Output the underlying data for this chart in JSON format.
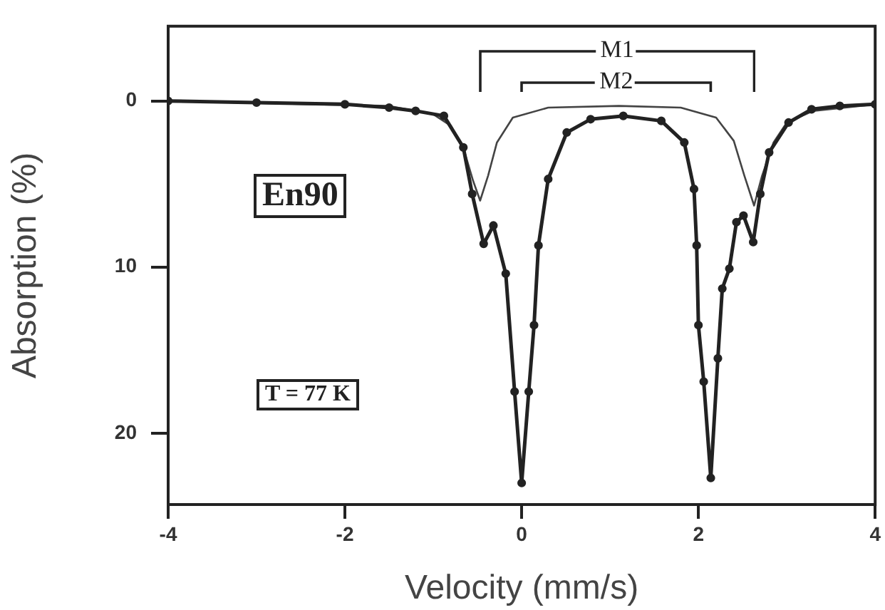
{
  "chart_data": {
    "type": "line",
    "xlabel": "Velocity (mm/s)",
    "ylabel": "Absorption (%)",
    "xlim": [
      -4,
      4
    ],
    "xticks": [
      -4,
      -2,
      0,
      2,
      4
    ],
    "ylim": [
      24.3,
      -4.5
    ],
    "yticks": [
      0,
      10,
      20
    ],
    "grid": false,
    "legend": false,
    "series": [
      {
        "color": "#222222",
        "marker": "circle",
        "x": [
          -4,
          -3,
          -2,
          -1.5,
          -1.2,
          -0.88,
          -0.66,
          -0.56,
          -0.43,
          -0.32,
          -0.18,
          -0.08,
          0,
          0.08,
          0.14,
          0.19,
          0.3,
          0.51,
          0.78,
          1.15,
          1.58,
          1.84,
          1.95,
          1.98,
          2.0,
          2.06,
          2.14,
          2.22,
          2.27,
          2.35,
          2.43,
          2.51,
          2.62,
          2.7,
          2.8,
          3.02,
          3.28,
          3.6,
          4
        ],
        "values": [
          0,
          0.1,
          0.2,
          0.4,
          0.6,
          0.9,
          2.8,
          5.6,
          8.6,
          7.5,
          10.4,
          17.5,
          23.0,
          17.5,
          13.5,
          8.7,
          4.7,
          1.9,
          1.1,
          0.9,
          1.2,
          2.5,
          5.3,
          8.7,
          13.5,
          16.9,
          22.7,
          15.5,
          11.3,
          10.1,
          7.3,
          6.9,
          8.5,
          5.6,
          3.1,
          1.3,
          0.5,
          0.3,
          0.2
        ]
      },
      {
        "color": "#444444",
        "marker": "none",
        "x": [
          -4,
          -1.5,
          -1.0,
          -0.8,
          -0.65,
          -0.55,
          -0.47,
          -0.38,
          -0.28,
          -0.1,
          0.3,
          1.1,
          1.8,
          2.2,
          2.4,
          2.52,
          2.63,
          2.72,
          2.85,
          3.0,
          3.3,
          4
        ],
        "values": [
          0,
          0.3,
          0.8,
          1.5,
          3.0,
          4.8,
          6.0,
          4.5,
          2.5,
          1.0,
          0.4,
          0.3,
          0.4,
          1.0,
          2.4,
          4.5,
          6.3,
          4.5,
          2.5,
          1.3,
          0.6,
          0.2
        ]
      }
    ],
    "annotations": [
      "M1",
      "M2",
      "En90",
      "T = 77 K"
    ]
  }
}
